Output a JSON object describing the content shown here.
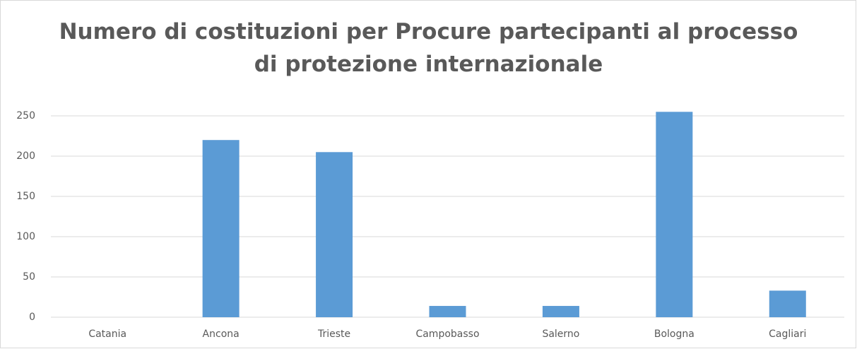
{
  "chart_data": {
    "type": "bar",
    "title": "Numero di costituzioni per Procure partecipanti al processo\ndi protezione internazionale",
    "categories": [
      "Catania",
      "Ancona",
      "Trieste",
      "Campobasso",
      "Salerno",
      "Bologna",
      "Cagliari"
    ],
    "values": [
      0,
      220,
      205,
      14,
      14,
      255,
      33
    ],
    "color": "#5b9bd5",
    "ylim": [
      0,
      250
    ],
    "yticks": [
      0,
      50,
      100,
      150,
      200,
      250
    ],
    "grid": true
  }
}
